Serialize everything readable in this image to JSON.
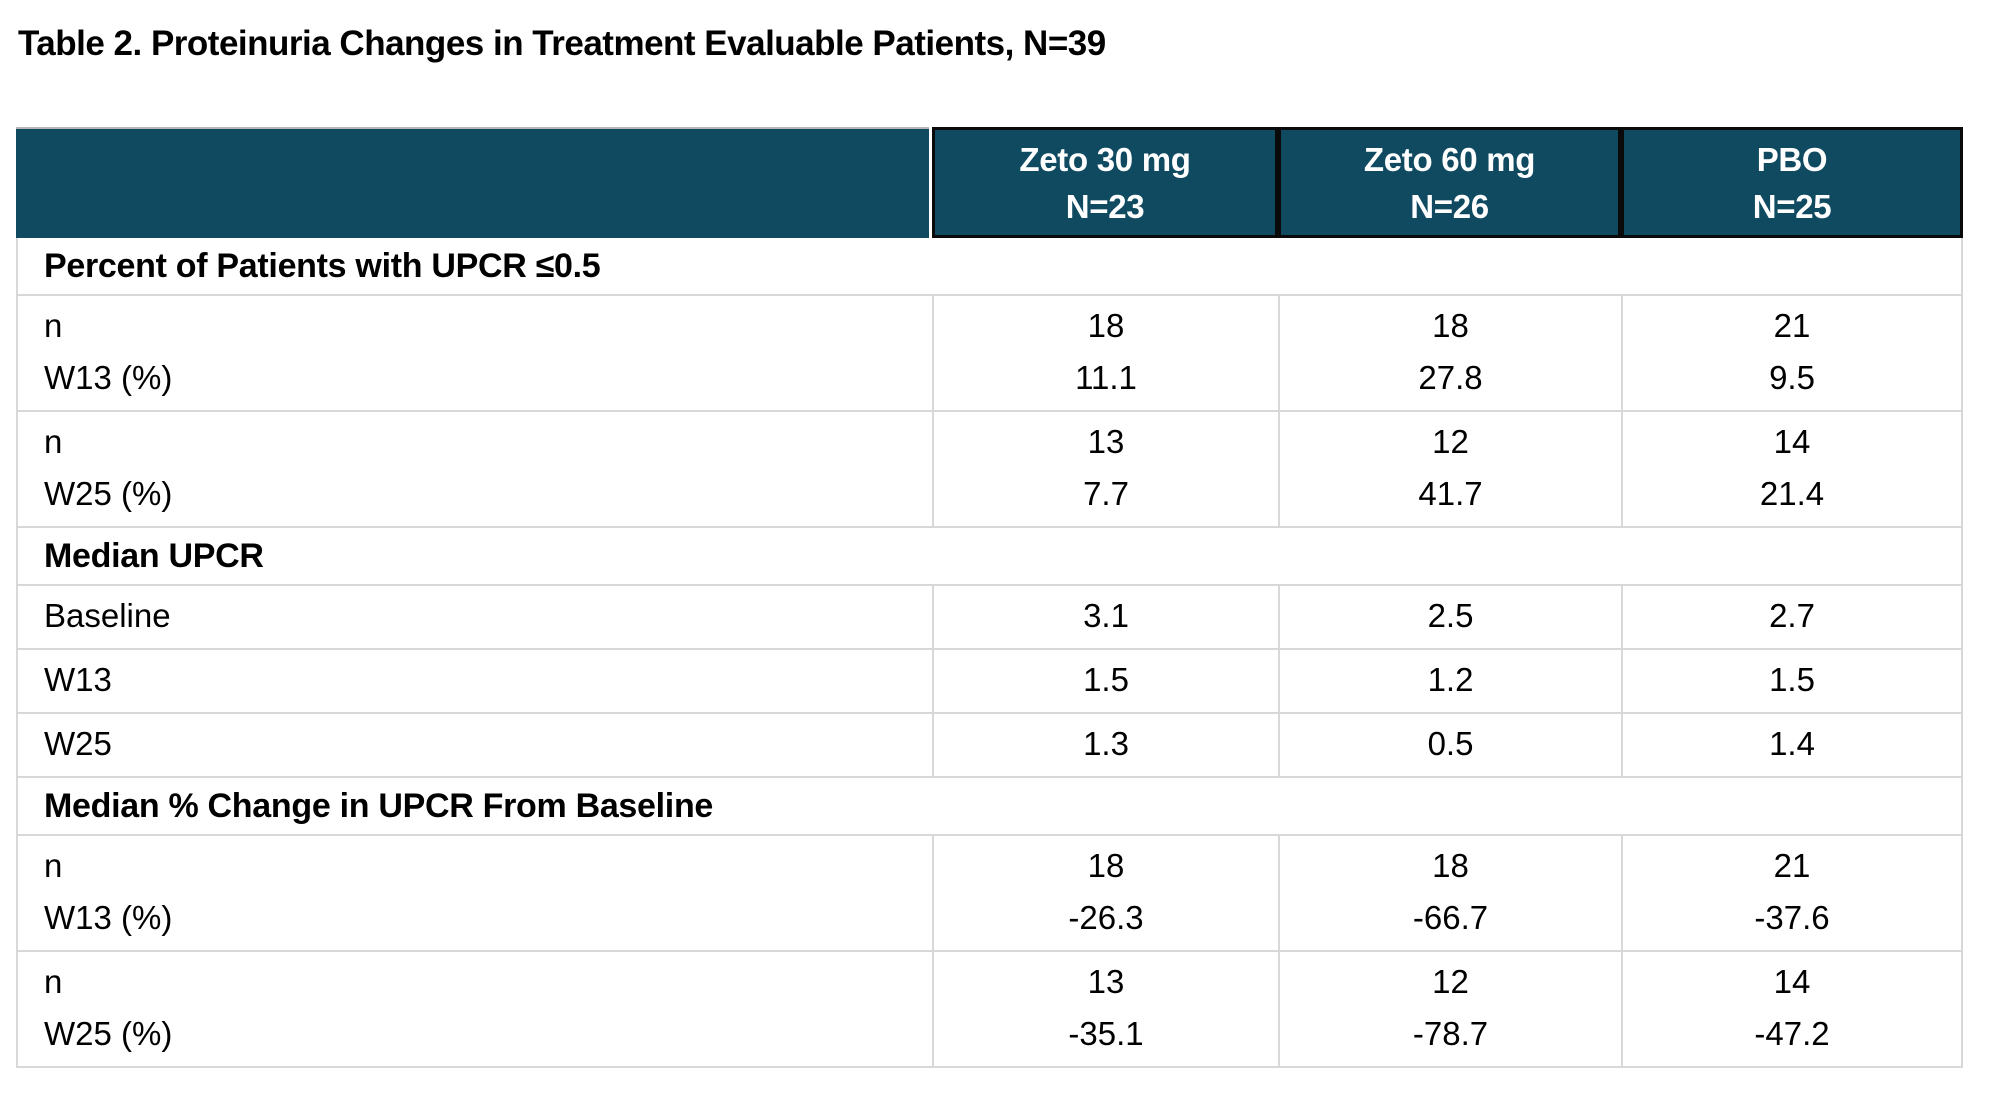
{
  "page_title": "Table 2. Proteinuria Changes in Treatment Evaluable Patients, N=39",
  "table": {
    "columns": [
      {
        "line1": "Zeto 30 mg",
        "line2": "N=23"
      },
      {
        "line1": "Zeto 60 mg",
        "line2": "N=26"
      },
      {
        "line1": "PBO",
        "line2": "N=25"
      }
    ],
    "sections": [
      {
        "header": "Percent of Patients with UPCR ≤0.5",
        "rows": [
          {
            "label": [
              "n",
              "W13 (%)"
            ],
            "values": [
              [
                "18",
                "11.1"
              ],
              [
                "18",
                "27.8"
              ],
              [
                "21",
                "9.5"
              ]
            ]
          },
          {
            "label": [
              "n",
              "W25 (%)"
            ],
            "values": [
              [
                "13",
                "7.7"
              ],
              [
                "12",
                "41.7"
              ],
              [
                "14",
                "21.4"
              ]
            ]
          }
        ]
      },
      {
        "header": "Median UPCR",
        "rows": [
          {
            "label": [
              "Baseline"
            ],
            "values": [
              [
                "3.1"
              ],
              [
                "2.5"
              ],
              [
                "2.7"
              ]
            ]
          },
          {
            "label": [
              "W13"
            ],
            "values": [
              [
                "1.5"
              ],
              [
                "1.2"
              ],
              [
                "1.5"
              ]
            ]
          },
          {
            "label": [
              "W25"
            ],
            "values": [
              [
                "1.3"
              ],
              [
                "0.5"
              ],
              [
                "1.4"
              ]
            ]
          }
        ]
      },
      {
        "header": "Median % Change in UPCR From Baseline",
        "rows": [
          {
            "label": [
              "n",
              "W13 (%)"
            ],
            "values": [
              [
                "18",
                "-26.3"
              ],
              [
                "18",
                "-66.7"
              ],
              [
                "21",
                "-37.6"
              ]
            ]
          },
          {
            "label": [
              "n",
              "W25 (%)"
            ],
            "values": [
              [
                "13",
                "-35.1"
              ],
              [
                "12",
                "-78.7"
              ],
              [
                "14",
                "-47.2"
              ]
            ]
          }
        ]
      }
    ]
  },
  "colors": {
    "header_bg": "#104A61",
    "header_text": "#FFFFFF",
    "header_border": "#0A0A0A",
    "grid_line": "#D8D8D8",
    "text": "#000000"
  }
}
